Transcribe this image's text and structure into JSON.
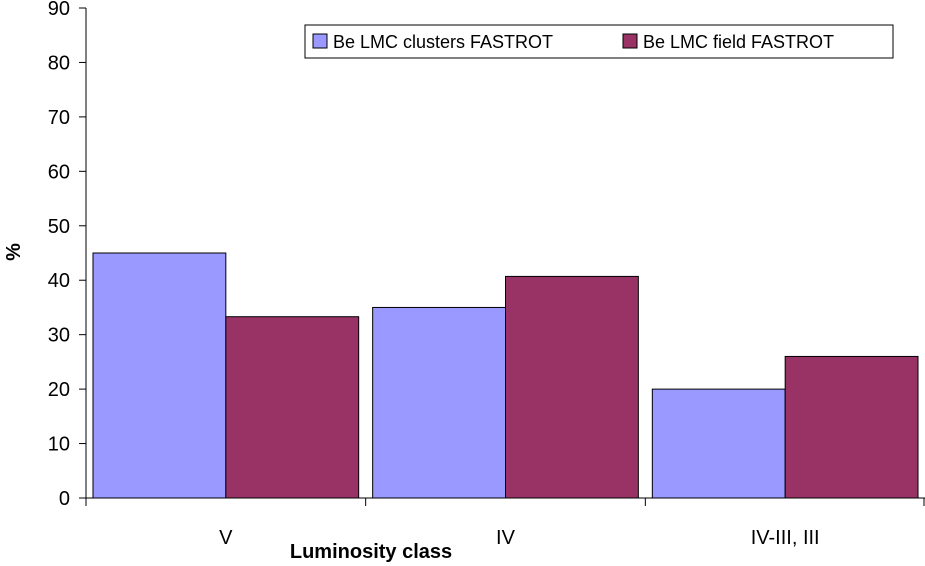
{
  "chart_data": {
    "type": "bar",
    "categories": [
      "V",
      "IV",
      "IV-III, III"
    ],
    "series": [
      {
        "name": "Be LMC clusters FASTROT",
        "values": [
          45,
          35,
          20
        ],
        "color": "#9999ff"
      },
      {
        "name": "Be LMC field FASTROT",
        "values": [
          33.3,
          40.7,
          26.0
        ],
        "color": "#993366"
      }
    ],
    "xlabel": "Luminosity class",
    "ylabel": "%",
    "ylim": [
      0,
      90
    ],
    "yticks": [
      0,
      10,
      20,
      30,
      40,
      50,
      60,
      70,
      80,
      90
    ],
    "grid": false,
    "legend": "top-right"
  }
}
